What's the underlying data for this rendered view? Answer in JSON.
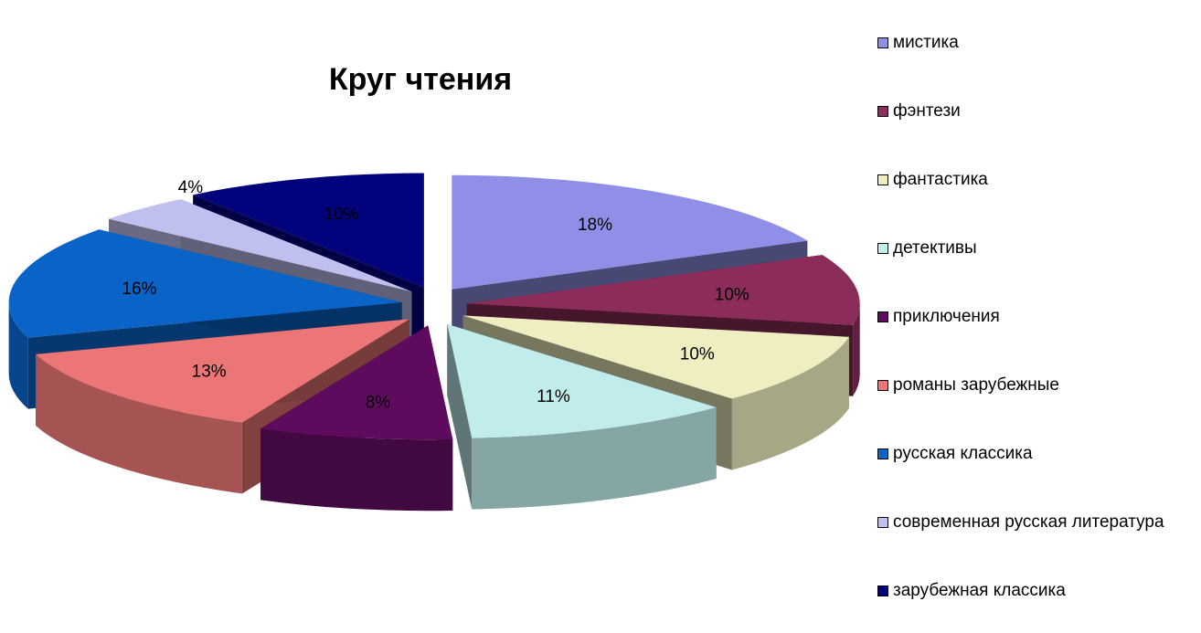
{
  "chart_data": {
    "type": "pie",
    "title": "Круг чтения",
    "legend_position": "right",
    "slices": [
      {
        "name": "мистика",
        "value": 18,
        "label": "18%",
        "color": "#8f8fe8"
      },
      {
        "name": "фэнтези",
        "value": 10,
        "label": "10%",
        "color": "#8c2c5a"
      },
      {
        "name": "фантастика",
        "value": 10,
        "label": "10%",
        "color": "#eeeec0"
      },
      {
        "name": "детективы",
        "value": 11,
        "label": "11%",
        "color": "#c0ecec"
      },
      {
        "name": "приключения",
        "value": 8,
        "label": "8%",
        "color": "#5e0b5e"
      },
      {
        "name": "романы зарубежные",
        "value": 13,
        "label": "13%",
        "color": "#ec7676"
      },
      {
        "name": "русская классика",
        "value": 16,
        "label": "16%",
        "color": "#0a64c8"
      },
      {
        "name": "современная русская литература",
        "value": 4,
        "label": "4%",
        "color": "#c0c0f0"
      },
      {
        "name": "зарубежная классика",
        "value": 10,
        "label": "10%",
        "color": "#02027c"
      }
    ]
  }
}
